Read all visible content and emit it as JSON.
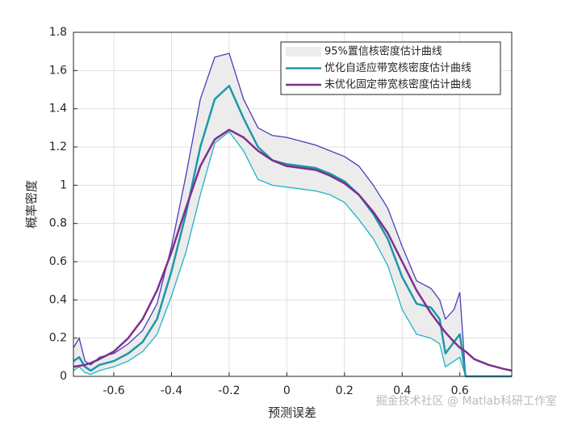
{
  "chart_data": {
    "type": "line",
    "x_label": "预测误差",
    "y_label": "概率密度",
    "watermark": "掘金技术社区 @ Matlab科研工作室",
    "xlim": [
      -0.74,
      0.78
    ],
    "ylim": [
      0,
      1.8
    ],
    "xticks": [
      -0.6,
      -0.4,
      -0.2,
      0,
      0.2,
      0.4,
      0.6
    ],
    "yticks": [
      0,
      0.2,
      0.4,
      0.6,
      0.8,
      1,
      1.2,
      1.4,
      1.6,
      1.8
    ],
    "grid": true,
    "legend": "upper right",
    "x": [
      -0.74,
      -0.72,
      -0.7,
      -0.68,
      -0.65,
      -0.6,
      -0.55,
      -0.5,
      -0.45,
      -0.4,
      -0.35,
      -0.3,
      -0.25,
      -0.2,
      -0.15,
      -0.1,
      -0.05,
      0,
      0.05,
      0.1,
      0.15,
      0.2,
      0.25,
      0.3,
      0.35,
      0.4,
      0.45,
      0.5,
      0.53,
      0.55,
      0.58,
      0.6,
      0.62,
      0.65,
      0.7,
      0.75,
      0.78
    ],
    "series": [
      {
        "name": "95%置信核密度估计曲线",
        "kind": "band",
        "color": "#ececec",
        "upper_color": "#4b3db8",
        "lower_color": "#22b3c6",
        "values": [
          0.15,
          0.2,
          0.08,
          0.06,
          0.1,
          0.12,
          0.17,
          0.24,
          0.38,
          0.68,
          1.05,
          1.45,
          1.67,
          1.69,
          1.45,
          1.3,
          1.26,
          1.25,
          1.23,
          1.21,
          1.18,
          1.15,
          1.1,
          1.0,
          0.88,
          0.68,
          0.5,
          0.46,
          0.4,
          0.3,
          0.35,
          0.44,
          0,
          0,
          0,
          0,
          0
        ],
        "lower": [
          0.03,
          0.05,
          0.02,
          0.01,
          0.03,
          0.05,
          0.08,
          0.13,
          0.22,
          0.42,
          0.65,
          0.95,
          1.22,
          1.28,
          1.18,
          1.03,
          1.0,
          0.99,
          0.98,
          0.97,
          0.95,
          0.91,
          0.82,
          0.72,
          0.58,
          0.35,
          0.22,
          0.2,
          0.17,
          0.05,
          0.08,
          0.1,
          0,
          0,
          0,
          0,
          0
        ]
      },
      {
        "name": "优化自适应带宽核密度估计曲线",
        "kind": "line",
        "color": "#1f97a8",
        "values": [
          0.08,
          0.1,
          0.05,
          0.03,
          0.06,
          0.08,
          0.12,
          0.18,
          0.3,
          0.55,
          0.85,
          1.2,
          1.45,
          1.52,
          1.35,
          1.2,
          1.13,
          1.11,
          1.1,
          1.09,
          1.06,
          1.02,
          0.95,
          0.85,
          0.72,
          0.52,
          0.38,
          0.36,
          0.3,
          0.12,
          0.18,
          0.22,
          0,
          0,
          0,
          0,
          0
        ]
      },
      {
        "name": "未优化固定带宽核密度估计曲线",
        "kind": "line",
        "color": "#7e2f8e",
        "values": [
          0.05,
          0.055,
          0.06,
          0.07,
          0.09,
          0.13,
          0.2,
          0.3,
          0.45,
          0.65,
          0.88,
          1.1,
          1.24,
          1.29,
          1.25,
          1.18,
          1.13,
          1.1,
          1.09,
          1.08,
          1.05,
          1.01,
          0.95,
          0.86,
          0.75,
          0.6,
          0.45,
          0.33,
          0.27,
          0.23,
          0.18,
          0.15,
          0.13,
          0.09,
          0.06,
          0.04,
          0.03
        ]
      }
    ]
  }
}
